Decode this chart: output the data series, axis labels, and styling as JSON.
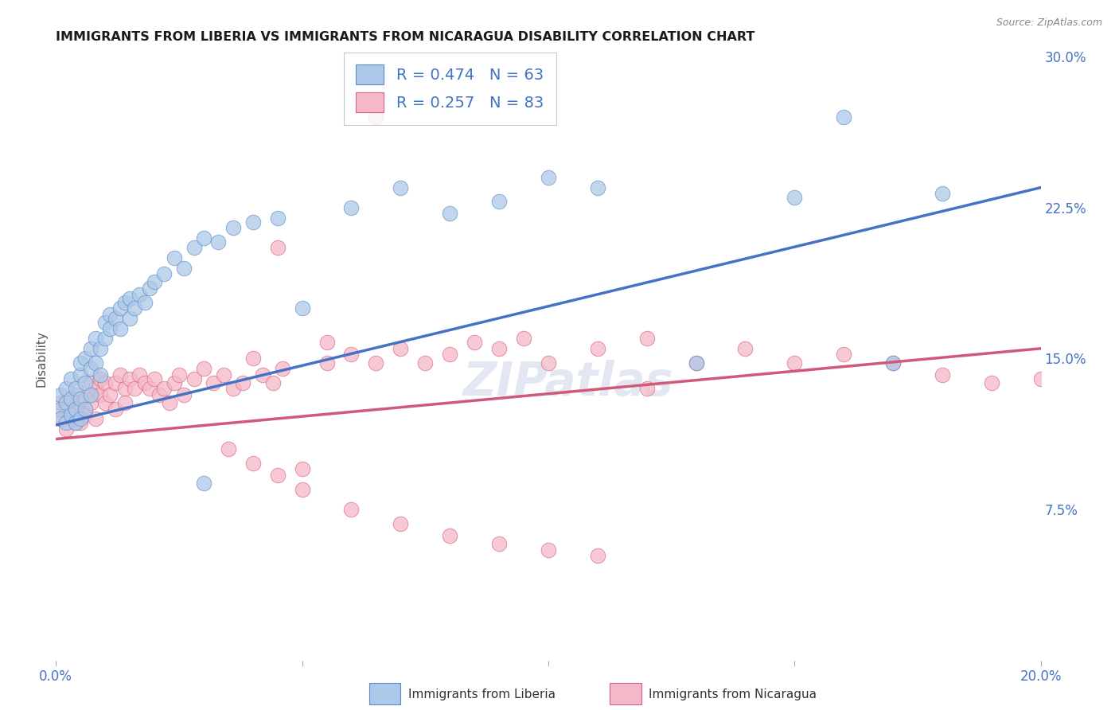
{
  "title": "IMMIGRANTS FROM LIBERIA VS IMMIGRANTS FROM NICARAGUA DISABILITY CORRELATION CHART",
  "source": "Source: ZipAtlas.com",
  "ylabel": "Disability",
  "xlim": [
    0.0,
    0.2
  ],
  "ylim": [
    0.0,
    0.3
  ],
  "xticks": [
    0.0,
    0.05,
    0.1,
    0.15,
    0.2
  ],
  "xtick_labels": [
    "0.0%",
    "",
    "",
    "",
    "20.0%"
  ],
  "ytick_labels_right": [
    "7.5%",
    "15.0%",
    "22.5%",
    "30.0%"
  ],
  "ytick_vals_right": [
    0.075,
    0.15,
    0.225,
    0.3
  ],
  "grid_color": "#cccccc",
  "background_color": "#ffffff",
  "liberia_color": "#adc8e8",
  "liberia_edge_color": "#5b8cc8",
  "liberia_line_color": "#4472c4",
  "nicaragua_color": "#f5b8c8",
  "nicaragua_edge_color": "#d86080",
  "nicaragua_line_color": "#d05878",
  "R_liberia": 0.474,
  "N_liberia": 63,
  "R_nicaragua": 0.257,
  "N_nicaragua": 83,
  "legend_label_liberia": "Immigrants from Liberia",
  "legend_label_nicaragua": "Immigrants from Nicaragua",
  "liberia_line_x0": 0.0,
  "liberia_line_x1": 0.2,
  "liberia_line_y0": 0.117,
  "liberia_line_y1": 0.235,
  "nicaragua_line_x0": 0.0,
  "nicaragua_line_x1": 0.2,
  "nicaragua_line_y0": 0.11,
  "nicaragua_line_y1": 0.155,
  "liberia_x": [
    0.001,
    0.001,
    0.001,
    0.002,
    0.002,
    0.002,
    0.003,
    0.003,
    0.003,
    0.004,
    0.004,
    0.004,
    0.005,
    0.005,
    0.005,
    0.005,
    0.006,
    0.006,
    0.006,
    0.007,
    0.007,
    0.007,
    0.008,
    0.008,
    0.009,
    0.009,
    0.01,
    0.01,
    0.011,
    0.011,
    0.012,
    0.013,
    0.013,
    0.014,
    0.015,
    0.015,
    0.016,
    0.017,
    0.018,
    0.019,
    0.02,
    0.022,
    0.024,
    0.026,
    0.028,
    0.03,
    0.033,
    0.036,
    0.04,
    0.045,
    0.05,
    0.06,
    0.07,
    0.08,
    0.09,
    0.1,
    0.11,
    0.13,
    0.15,
    0.16,
    0.17,
    0.18,
    0.03
  ],
  "liberia_y": [
    0.125,
    0.132,
    0.12,
    0.128,
    0.135,
    0.118,
    0.13,
    0.122,
    0.14,
    0.125,
    0.118,
    0.135,
    0.13,
    0.142,
    0.148,
    0.12,
    0.138,
    0.15,
    0.125,
    0.145,
    0.155,
    0.132,
    0.148,
    0.16,
    0.155,
    0.142,
    0.16,
    0.168,
    0.165,
    0.172,
    0.17,
    0.175,
    0.165,
    0.178,
    0.18,
    0.17,
    0.175,
    0.182,
    0.178,
    0.185,
    0.188,
    0.192,
    0.2,
    0.195,
    0.205,
    0.21,
    0.208,
    0.215,
    0.218,
    0.22,
    0.175,
    0.225,
    0.235,
    0.222,
    0.228,
    0.24,
    0.235,
    0.148,
    0.23,
    0.27,
    0.148,
    0.232,
    0.088
  ],
  "nicaragua_x": [
    0.001,
    0.001,
    0.002,
    0.002,
    0.003,
    0.003,
    0.004,
    0.004,
    0.005,
    0.005,
    0.006,
    0.006,
    0.007,
    0.007,
    0.008,
    0.008,
    0.009,
    0.009,
    0.01,
    0.01,
    0.011,
    0.012,
    0.012,
    0.013,
    0.014,
    0.014,
    0.015,
    0.016,
    0.017,
    0.018,
    0.019,
    0.02,
    0.021,
    0.022,
    0.023,
    0.024,
    0.025,
    0.026,
    0.028,
    0.03,
    0.032,
    0.034,
    0.036,
    0.038,
    0.04,
    0.042,
    0.044,
    0.046,
    0.05,
    0.055,
    0.06,
    0.065,
    0.07,
    0.075,
    0.08,
    0.085,
    0.09,
    0.095,
    0.1,
    0.11,
    0.12,
    0.13,
    0.14,
    0.15,
    0.16,
    0.17,
    0.18,
    0.19,
    0.2,
    0.035,
    0.04,
    0.045,
    0.05,
    0.06,
    0.07,
    0.08,
    0.09,
    0.1,
    0.11,
    0.045,
    0.055,
    0.065,
    0.12
  ],
  "nicaragua_y": [
    0.12,
    0.128,
    0.115,
    0.125,
    0.122,
    0.13,
    0.118,
    0.132,
    0.125,
    0.118,
    0.13,
    0.122,
    0.138,
    0.128,
    0.135,
    0.12,
    0.132,
    0.14,
    0.138,
    0.128,
    0.132,
    0.138,
    0.125,
    0.142,
    0.135,
    0.128,
    0.14,
    0.135,
    0.142,
    0.138,
    0.135,
    0.14,
    0.132,
    0.135,
    0.128,
    0.138,
    0.142,
    0.132,
    0.14,
    0.145,
    0.138,
    0.142,
    0.135,
    0.138,
    0.15,
    0.142,
    0.138,
    0.145,
    0.095,
    0.148,
    0.152,
    0.148,
    0.155,
    0.148,
    0.152,
    0.158,
    0.155,
    0.16,
    0.148,
    0.155,
    0.16,
    0.148,
    0.155,
    0.148,
    0.152,
    0.148,
    0.142,
    0.138,
    0.14,
    0.105,
    0.098,
    0.092,
    0.085,
    0.075,
    0.068,
    0.062,
    0.058,
    0.055,
    0.052,
    0.205,
    0.158,
    0.27,
    0.135
  ]
}
